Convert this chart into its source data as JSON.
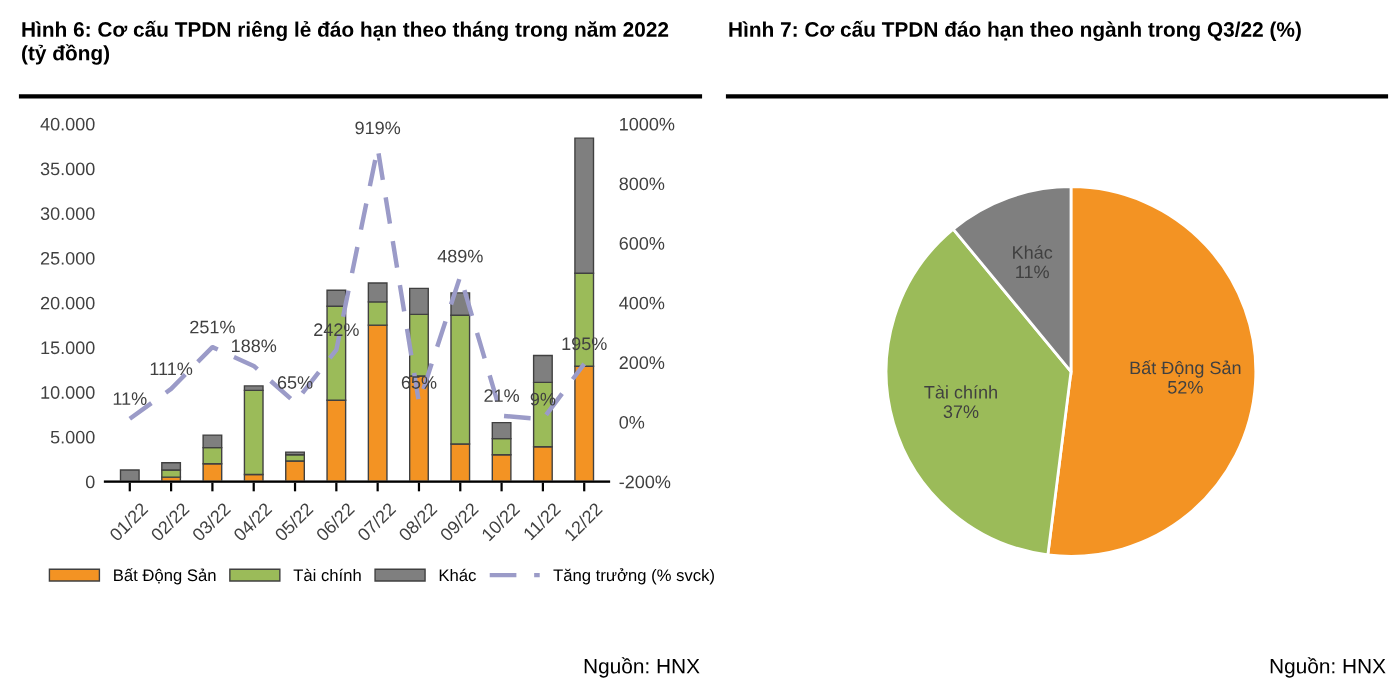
{
  "chart_data": [
    {
      "type": "bar",
      "title": "Hình 6: Cơ cấu TPDN riêng lẻ đáo hạn theo tháng trong năm 2022 (tỷ đồng)",
      "stacked": true,
      "categories": [
        "01/22",
        "02/22",
        "03/22",
        "04/22",
        "05/22",
        "06/22",
        "07/22",
        "08/22",
        "09/22",
        "10/22",
        "11/22",
        "12/22"
      ],
      "series": [
        {
          "name": "Bất Động Sản",
          "color": "#f39323",
          "values": [
            0,
            500,
            2000,
            800,
            2300,
            9100,
            17500,
            11800,
            4200,
            3000,
            3900,
            12900
          ]
        },
        {
          "name": "Tài chính",
          "color": "#9bbb59",
          "values": [
            0,
            800,
            1800,
            9400,
            700,
            10500,
            2600,
            6900,
            14400,
            1800,
            7200,
            10400
          ]
        },
        {
          "name": "Khác",
          "color": "#7f7f7f",
          "values": [
            1300,
            800,
            1400,
            500,
            300,
            1800,
            2100,
            2900,
            2500,
            1800,
            3000,
            15100
          ]
        },
        {
          "name": "Tăng trưởng (% svck)",
          "type": "line",
          "axis": "y2",
          "color": "#9b9bc8",
          "line_style": "dashed",
          "data_labels": true,
          "value_labels": [
            "11%",
            "111%",
            "251%",
            "188%",
            "65%",
            "242%",
            "919%",
            "65%",
            "489%",
            "21%",
            "9%",
            "195%"
          ],
          "values": [
            11,
            111,
            251,
            188,
            65,
            242,
            919,
            65,
            489,
            21,
            9,
            195
          ]
        }
      ],
      "ylim": [
        0,
        40000
      ],
      "yticks": [
        {
          "value": 0,
          "label": "0"
        },
        {
          "value": 5000,
          "label": "5.000"
        },
        {
          "value": 10000,
          "label": "10.000"
        },
        {
          "value": 15000,
          "label": "15.000"
        },
        {
          "value": 20000,
          "label": "20.000"
        },
        {
          "value": 25000,
          "label": "25.000"
        },
        {
          "value": 30000,
          "label": "30.000"
        },
        {
          "value": 35000,
          "label": "35.000"
        },
        {
          "value": 40000,
          "label": "40.000"
        }
      ],
      "y2lim": [
        -200,
        1000
      ],
      "y2ticks": [
        {
          "value": -200,
          "label": "-200%"
        },
        {
          "value": 0,
          "label": "0%"
        },
        {
          "value": 200,
          "label": "200%"
        },
        {
          "value": 400,
          "label": "400%"
        },
        {
          "value": 600,
          "label": "600%"
        },
        {
          "value": 800,
          "label": "800%"
        },
        {
          "value": 1000,
          "label": "1000%"
        }
      ],
      "grid": false,
      "legend": "bottom",
      "annotations": [
        "Nguồn: HNX"
      ]
    },
    {
      "type": "pie",
      "title": "Hình 7: Cơ cấu TPDN đáo hạn theo ngành trong Q3/22 (%)",
      "categories": [
        "Bất Động Sản",
        "Tài chính",
        "Khác"
      ],
      "values": [
        52,
        37,
        11
      ],
      "colors": [
        "#f39323",
        "#9bbb59",
        "#7f7f7f"
      ],
      "value_labels": [
        "52%",
        "37%",
        "11%"
      ],
      "annotations": [
        "Nguồn: HNX"
      ]
    }
  ]
}
